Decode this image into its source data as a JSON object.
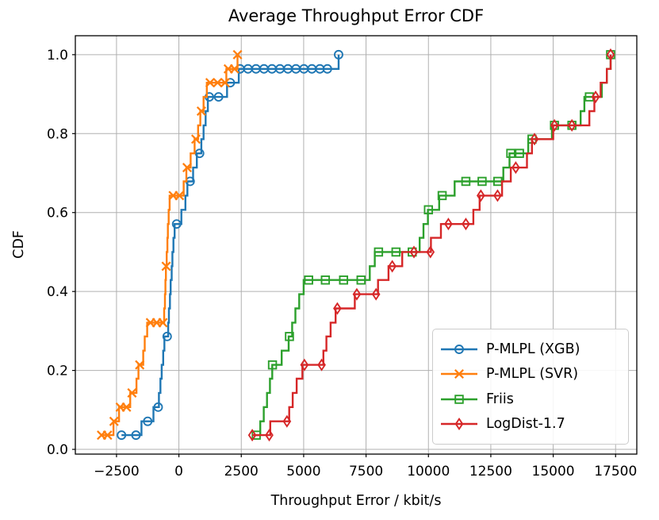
{
  "chart_data": {
    "type": "line",
    "title": "Average Throughput Error CDF",
    "xlabel": "Throughput Error / kbit/s",
    "ylabel": "CDF",
    "xlim": [
      -4150,
      18350
    ],
    "ylim": [
      -0.012,
      1.048
    ],
    "grid": true,
    "grid_color": "#b0b0b0",
    "axis_color": "#000000",
    "legend_position": "lower right",
    "xticks": {
      "values": [
        -2500,
        0,
        2500,
        5000,
        7500,
        10000,
        12500,
        15000,
        17500
      ],
      "labels": [
        "−2500",
        "0",
        "2500",
        "5000",
        "7500",
        "10000",
        "12500",
        "15000",
        "17500"
      ]
    },
    "yticks": {
      "values": [
        0.0,
        0.2,
        0.4,
        0.6,
        0.8,
        1.0
      ],
      "labels": [
        "0.0",
        "0.2",
        "0.4",
        "0.6",
        "0.8",
        "1.0"
      ]
    },
    "series": [
      {
        "name": "P-MLPL (XGB)",
        "color": "#1f77b4",
        "marker": "circle",
        "curve": [
          [
            -2300,
            0.036
          ],
          [
            -1500,
            0.071
          ],
          [
            -1020,
            0.107
          ],
          [
            -800,
            0.143
          ],
          [
            -740,
            0.179
          ],
          [
            -690,
            0.214
          ],
          [
            -630,
            0.25
          ],
          [
            -580,
            0.286
          ],
          [
            -430,
            0.321
          ],
          [
            -400,
            0.357
          ],
          [
            -360,
            0.393
          ],
          [
            -330,
            0.429
          ],
          [
            -290,
            0.464
          ],
          [
            -260,
            0.5
          ],
          [
            -220,
            0.536
          ],
          [
            -170,
            0.571
          ],
          [
            100,
            0.607
          ],
          [
            260,
            0.643
          ],
          [
            340,
            0.679
          ],
          [
            570,
            0.714
          ],
          [
            720,
            0.75
          ],
          [
            900,
            0.786
          ],
          [
            990,
            0.821
          ],
          [
            1070,
            0.857
          ],
          [
            1160,
            0.893
          ],
          [
            1930,
            0.929
          ],
          [
            2400,
            0.964
          ],
          [
            6400,
            1.0
          ]
        ],
        "marker_points": [
          [
            -2300,
            0.036
          ],
          [
            -1720,
            0.036
          ],
          [
            -1250,
            0.071
          ],
          [
            -830,
            0.107
          ],
          [
            -470,
            0.286
          ],
          [
            -90,
            0.571
          ],
          [
            450,
            0.679
          ],
          [
            830,
            0.75
          ],
          [
            1220,
            0.893
          ],
          [
            1590,
            0.893
          ],
          [
            2060,
            0.929
          ],
          [
            2450,
            0.964
          ],
          [
            2770,
            0.964
          ],
          [
            3090,
            0.964
          ],
          [
            3410,
            0.964
          ],
          [
            3730,
            0.964
          ],
          [
            4050,
            0.964
          ],
          [
            4370,
            0.964
          ],
          [
            4690,
            0.964
          ],
          [
            5010,
            0.964
          ],
          [
            5330,
            0.964
          ],
          [
            5650,
            0.964
          ],
          [
            5950,
            0.964
          ],
          [
            6400,
            1.0
          ]
        ]
      },
      {
        "name": "P-MLPL (SVR)",
        "color": "#ff7f0e",
        "marker": "x",
        "curve": [
          [
            -3100,
            0.036
          ],
          [
            -2620,
            0.071
          ],
          [
            -2400,
            0.107
          ],
          [
            -1950,
            0.143
          ],
          [
            -1700,
            0.179
          ],
          [
            -1620,
            0.214
          ],
          [
            -1430,
            0.25
          ],
          [
            -1370,
            0.286
          ],
          [
            -1270,
            0.321
          ],
          [
            -590,
            0.357
          ],
          [
            -560,
            0.393
          ],
          [
            -540,
            0.429
          ],
          [
            -520,
            0.464
          ],
          [
            -490,
            0.5
          ],
          [
            -460,
            0.536
          ],
          [
            -440,
            0.571
          ],
          [
            -410,
            0.607
          ],
          [
            -370,
            0.643
          ],
          [
            190,
            0.679
          ],
          [
            300,
            0.714
          ],
          [
            470,
            0.75
          ],
          [
            630,
            0.786
          ],
          [
            770,
            0.821
          ],
          [
            860,
            0.857
          ],
          [
            990,
            0.893
          ],
          [
            1120,
            0.929
          ],
          [
            1900,
            0.964
          ],
          [
            2350,
            1.0
          ]
        ],
        "marker_points": [
          [
            -3100,
            0.036
          ],
          [
            -2860,
            0.036
          ],
          [
            -2600,
            0.071
          ],
          [
            -2350,
            0.107
          ],
          [
            -2100,
            0.107
          ],
          [
            -1880,
            0.143
          ],
          [
            -1570,
            0.214
          ],
          [
            -1140,
            0.321
          ],
          [
            -890,
            0.321
          ],
          [
            -640,
            0.321
          ],
          [
            -510,
            0.464
          ],
          [
            -230,
            0.643
          ],
          [
            20,
            0.643
          ],
          [
            330,
            0.714
          ],
          [
            680,
            0.786
          ],
          [
            900,
            0.857
          ],
          [
            1250,
            0.929
          ],
          [
            1550,
            0.929
          ],
          [
            1850,
            0.929
          ],
          [
            1980,
            0.964
          ],
          [
            2230,
            0.964
          ],
          [
            2350,
            1.0
          ]
        ]
      },
      {
        "name": "Friis",
        "color": "#2ca02c",
        "marker": "square",
        "curve": [
          [
            3100,
            0.036
          ],
          [
            3260,
            0.071
          ],
          [
            3400,
            0.107
          ],
          [
            3530,
            0.143
          ],
          [
            3650,
            0.179
          ],
          [
            3740,
            0.214
          ],
          [
            4120,
            0.25
          ],
          [
            4400,
            0.286
          ],
          [
            4540,
            0.321
          ],
          [
            4670,
            0.357
          ],
          [
            4820,
            0.393
          ],
          [
            5000,
            0.429
          ],
          [
            7650,
            0.464
          ],
          [
            7850,
            0.5
          ],
          [
            9650,
            0.536
          ],
          [
            9800,
            0.571
          ],
          [
            9980,
            0.607
          ],
          [
            10430,
            0.643
          ],
          [
            11050,
            0.679
          ],
          [
            13000,
            0.714
          ],
          [
            13250,
            0.75
          ],
          [
            14000,
            0.786
          ],
          [
            14950,
            0.821
          ],
          [
            16100,
            0.857
          ],
          [
            16250,
            0.893
          ],
          [
            16950,
            0.929
          ],
          [
            17150,
            0.964
          ],
          [
            17300,
            1.0
          ]
        ],
        "marker_points": [
          [
            3100,
            0.036
          ],
          [
            3750,
            0.214
          ],
          [
            4430,
            0.286
          ],
          [
            5200,
            0.429
          ],
          [
            5870,
            0.429
          ],
          [
            6600,
            0.429
          ],
          [
            7300,
            0.429
          ],
          [
            8000,
            0.5
          ],
          [
            8700,
            0.5
          ],
          [
            9350,
            0.5
          ],
          [
            10000,
            0.607
          ],
          [
            10550,
            0.643
          ],
          [
            11500,
            0.679
          ],
          [
            12150,
            0.679
          ],
          [
            12780,
            0.679
          ],
          [
            13300,
            0.75
          ],
          [
            13650,
            0.75
          ],
          [
            14150,
            0.786
          ],
          [
            15050,
            0.821
          ],
          [
            15750,
            0.821
          ],
          [
            16450,
            0.893
          ],
          [
            17300,
            1.0
          ]
        ]
      },
      {
        "name": "LogDist-1.7",
        "color": "#d62728",
        "marker": "diamond",
        "curve": [
          [
            2940,
            0.036
          ],
          [
            3660,
            0.071
          ],
          [
            4420,
            0.107
          ],
          [
            4560,
            0.143
          ],
          [
            4720,
            0.179
          ],
          [
            4950,
            0.214
          ],
          [
            5790,
            0.25
          ],
          [
            5910,
            0.286
          ],
          [
            6080,
            0.321
          ],
          [
            6280,
            0.357
          ],
          [
            7050,
            0.393
          ],
          [
            7980,
            0.429
          ],
          [
            8400,
            0.464
          ],
          [
            8950,
            0.5
          ],
          [
            10100,
            0.536
          ],
          [
            10500,
            0.571
          ],
          [
            11800,
            0.607
          ],
          [
            12050,
            0.643
          ],
          [
            12950,
            0.679
          ],
          [
            13300,
            0.714
          ],
          [
            13950,
            0.75
          ],
          [
            14150,
            0.786
          ],
          [
            15000,
            0.821
          ],
          [
            16450,
            0.857
          ],
          [
            16650,
            0.893
          ],
          [
            16900,
            0.929
          ],
          [
            17150,
            0.964
          ],
          [
            17300,
            1.0
          ]
        ],
        "marker_points": [
          [
            2940,
            0.036
          ],
          [
            3620,
            0.036
          ],
          [
            4330,
            0.071
          ],
          [
            5030,
            0.214
          ],
          [
            5720,
            0.214
          ],
          [
            6350,
            0.357
          ],
          [
            7130,
            0.393
          ],
          [
            7900,
            0.393
          ],
          [
            8550,
            0.464
          ],
          [
            9420,
            0.5
          ],
          [
            10080,
            0.5
          ],
          [
            10800,
            0.571
          ],
          [
            11500,
            0.571
          ],
          [
            12100,
            0.643
          ],
          [
            12770,
            0.643
          ],
          [
            13500,
            0.714
          ],
          [
            14250,
            0.786
          ],
          [
            15050,
            0.821
          ],
          [
            15750,
            0.821
          ],
          [
            16700,
            0.893
          ],
          [
            17300,
            1.0
          ]
        ]
      }
    ]
  }
}
